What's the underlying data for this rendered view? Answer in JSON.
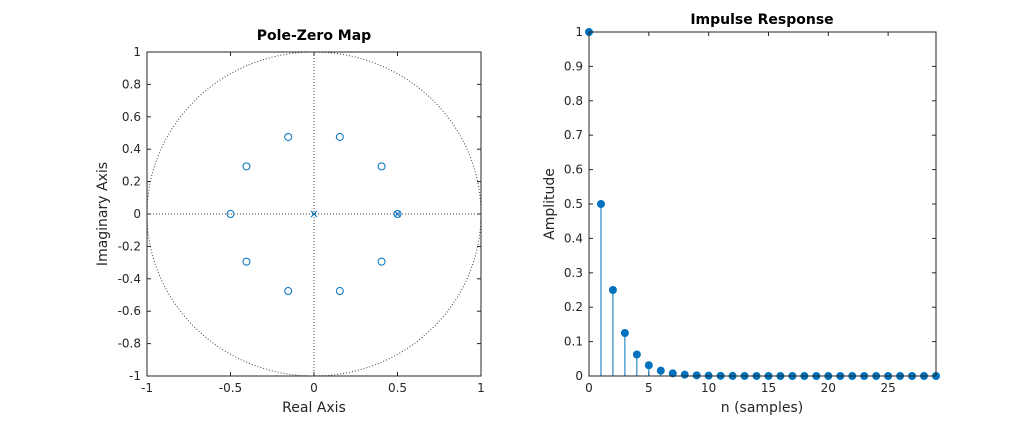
{
  "colors": {
    "series": "#0072bd",
    "axes": "#262626",
    "reference": "#404040"
  },
  "chart_data": [
    {
      "type": "scatter",
      "title": "Pole-Zero Map",
      "xlabel": "Real Axis",
      "ylabel": "Imaginary Axis",
      "xlim": [
        -1,
        1
      ],
      "ylim": [
        -1,
        1
      ],
      "xticks": [
        -1,
        -0.5,
        0,
        0.5,
        1
      ],
      "yticks": [
        -1,
        -0.8,
        -0.6,
        -0.4,
        -0.2,
        0,
        0.2,
        0.4,
        0.6,
        0.8,
        1
      ],
      "xtick_labels": [
        "-1",
        "-0.5",
        "0",
        "0.5",
        "1"
      ],
      "ytick_labels": [
        "-1",
        "-0.8",
        "-0.6",
        "-0.4",
        "-0.2",
        "0",
        "0.2",
        "0.4",
        "0.6",
        "0.8",
        "1"
      ],
      "unit_circle": true,
      "grid": false,
      "series": [
        {
          "marker": "o",
          "points": [
            {
              "x": 0.5,
              "y": 0
            },
            {
              "x": 0.4045,
              "y": 0.2939
            },
            {
              "x": 0.1545,
              "y": 0.4755
            },
            {
              "x": -0.1545,
              "y": 0.4755
            },
            {
              "x": -0.4045,
              "y": 0.2939
            },
            {
              "x": -0.5,
              "y": 0
            },
            {
              "x": -0.4045,
              "y": -0.2939
            },
            {
              "x": -0.1545,
              "y": -0.4755
            },
            {
              "x": 0.1545,
              "y": -0.4755
            },
            {
              "x": 0.4045,
              "y": -0.2939
            }
          ]
        },
        {
          "marker": "x",
          "points": [
            {
              "x": 0,
              "y": 0
            },
            {
              "x": 0.5,
              "y": 0
            }
          ]
        }
      ]
    },
    {
      "type": "stem",
      "title": "Impulse Response",
      "xlabel": "n (samples)",
      "ylabel": "Amplitude",
      "xlim": [
        0,
        29
      ],
      "ylim": [
        0,
        1
      ],
      "xticks": [
        0,
        5,
        10,
        15,
        20,
        25
      ],
      "yticks": [
        0,
        0.1,
        0.2,
        0.3,
        0.4,
        0.5,
        0.6,
        0.7,
        0.8,
        0.9,
        1
      ],
      "xtick_labels": [
        "0",
        "5",
        "10",
        "15",
        "20",
        "25"
      ],
      "ytick_labels": [
        "0",
        "0.1",
        "0.2",
        "0.3",
        "0.4",
        "0.5",
        "0.6",
        "0.7",
        "0.8",
        "0.9",
        "1"
      ],
      "grid": false,
      "x": [
        0,
        1,
        2,
        3,
        4,
        5,
        6,
        7,
        8,
        9,
        10,
        11,
        12,
        13,
        14,
        15,
        16,
        17,
        18,
        19,
        20,
        21,
        22,
        23,
        24,
        25,
        26,
        27,
        28,
        29
      ],
      "values": [
        1,
        0.5,
        0.25,
        0.125,
        0.0625,
        0.03125,
        0.015625,
        0.0078125,
        0.0039063,
        0.0019531,
        0.00097656,
        0.00048828,
        0.00024414,
        0.00012207,
        6.1035e-05,
        3.0518e-05,
        1.5259e-05,
        7.6294e-06,
        3.8147e-06,
        1.9073e-06,
        9.5367e-07,
        4.7684e-07,
        2.3842e-07,
        1.1921e-07,
        5.9605e-08,
        2.9802e-08,
        1.4901e-08,
        7.4506e-09,
        3.7253e-09,
        1.8626e-09
      ]
    }
  ]
}
